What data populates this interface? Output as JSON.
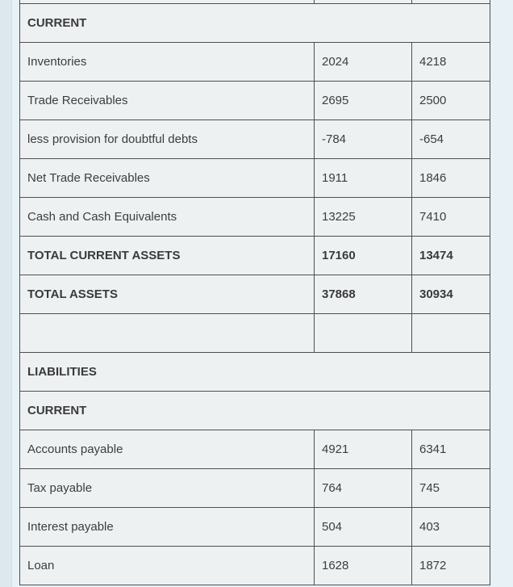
{
  "table": {
    "rows": [
      {
        "type": "partial"
      },
      {
        "type": "section",
        "label": "CURRENT"
      },
      {
        "type": "data",
        "label": "Inventories",
        "val_a": "2024",
        "val_b": "4218"
      },
      {
        "type": "data",
        "label": "Trade Receivables",
        "val_a": "2695",
        "val_b": "2500"
      },
      {
        "type": "data",
        "label": "less provision for doubtful debts",
        "val_a": "-784",
        "val_b": "-654"
      },
      {
        "type": "data",
        "label": "Net Trade Receivables",
        "val_a": "1911",
        "val_b": "1846"
      },
      {
        "type": "data",
        "label": "Cash and Cash Equivalents",
        "val_a": "13225",
        "val_b": "7410"
      },
      {
        "type": "total",
        "label": "TOTAL CURRENT ASSETS",
        "val_a": "17160",
        "val_b": "13474"
      },
      {
        "type": "total",
        "label": "TOTAL ASSETS",
        "val_a": "37868",
        "val_b": "30934"
      },
      {
        "type": "empty"
      },
      {
        "type": "section",
        "label": "LIABILITIES"
      },
      {
        "type": "section",
        "label": "CURRENT"
      },
      {
        "type": "data",
        "label": "Accounts payable",
        "val_a": "4921",
        "val_b": "6341"
      },
      {
        "type": "data",
        "label": "Tax payable",
        "val_a": "764",
        "val_b": "745"
      },
      {
        "type": "data",
        "label": "Interest payable",
        "val_a": "504",
        "val_b": "403"
      },
      {
        "type": "data",
        "label": "Loan",
        "val_a": "1628",
        "val_b": "1872"
      }
    ],
    "colors": {
      "page_background": "#e8f1f6",
      "cell_background": "#eef1f2",
      "border": "#4e4e4e",
      "text": "#3d3d3d"
    }
  }
}
